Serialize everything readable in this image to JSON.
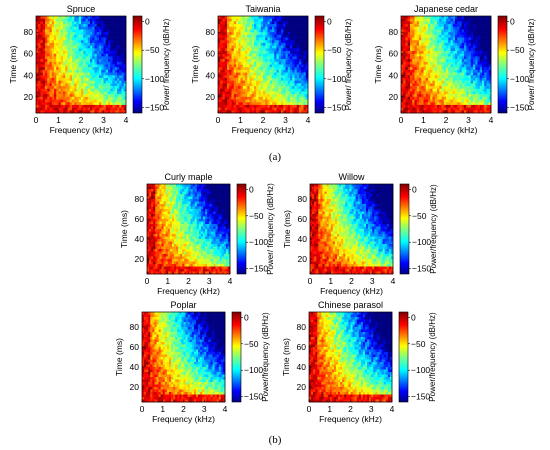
{
  "figure": {
    "sublabel_a": "(a)",
    "sublabel_b": "(b)"
  },
  "axis_text": {
    "xlabel": "Frequency (kHz)",
    "ylabel": "Time (ms)",
    "cbar_label_a": "Power/ frequency (dB/Hz)",
    "cbar_label_b": "Power/frequency (dB/Hz)"
  },
  "chart_data": [
    {
      "type": "heatmap",
      "group": "a",
      "title": "Spruce",
      "xlabel": "Frequency (kHz)",
      "ylabel": "Time (ms)",
      "xlim": [
        0,
        4
      ],
      "ylim": [
        5,
        95
      ],
      "xticks": [
        0,
        1,
        2,
        3,
        4
      ],
      "yticks": [
        20,
        40,
        60,
        80
      ],
      "colorbar": {
        "label": "Power/ frequency (dB/Hz)",
        "range": [
          -160,
          10
        ],
        "ticks": [
          0,
          -50,
          -100,
          -150
        ]
      }
    },
    {
      "type": "heatmap",
      "group": "a",
      "title": "Taiwania",
      "xlabel": "Frequency (kHz)",
      "ylabel": "Time (ms)",
      "xlim": [
        0,
        4
      ],
      "ylim": [
        5,
        95
      ],
      "xticks": [
        0,
        1,
        2,
        3,
        4
      ],
      "yticks": [
        20,
        40,
        60,
        80
      ],
      "colorbar": {
        "label": "Power/ frequency (dB/Hz)",
        "range": [
          -160,
          10
        ],
        "ticks": [
          0,
          -50,
          -100,
          -150
        ]
      }
    },
    {
      "type": "heatmap",
      "group": "a",
      "title": "Japanese cedar",
      "xlabel": "Frequency (kHz)",
      "ylabel": "Time (ms)",
      "xlim": [
        0,
        4
      ],
      "ylim": [
        5,
        95
      ],
      "xticks": [
        0,
        1,
        2,
        3,
        4
      ],
      "yticks": [
        20,
        40,
        60,
        80
      ],
      "colorbar": {
        "label": "Power/ frequency (dB/Hz)",
        "range": [
          -160,
          10
        ],
        "ticks": [
          0,
          -50,
          -100,
          -150
        ]
      }
    },
    {
      "type": "heatmap",
      "group": "b",
      "title": "Curly maple",
      "xlabel": "Frequency (kHz)",
      "ylabel": "Time (ms)",
      "xlim": [
        0,
        4
      ],
      "ylim": [
        5,
        95
      ],
      "xticks": [
        0,
        1,
        2,
        3,
        4
      ],
      "yticks": [
        20,
        40,
        60,
        80
      ],
      "colorbar": {
        "label": "Power/ frequency (dB/Hz)",
        "range": [
          -160,
          10
        ],
        "ticks": [
          0,
          -50,
          -100,
          -150
        ]
      }
    },
    {
      "type": "heatmap",
      "group": "b",
      "title": "Willow",
      "xlabel": "Frequency (kHz)",
      "ylabel": "Time (ms)",
      "xlim": [
        0,
        4
      ],
      "ylim": [
        5,
        95
      ],
      "xticks": [
        0,
        1,
        2,
        3,
        4
      ],
      "yticks": [
        20,
        40,
        60,
        80
      ],
      "colorbar": {
        "label": "Power/frequency (dB/Hz)",
        "range": [
          -160,
          10
        ],
        "ticks": [
          0,
          -50,
          -100,
          -150
        ]
      }
    },
    {
      "type": "heatmap",
      "group": "b",
      "title": "Poplar",
      "xlabel": "Frequency (kHz)",
      "ylabel": "Time (ms)",
      "xlim": [
        0,
        4
      ],
      "ylim": [
        5,
        95
      ],
      "xticks": [
        0,
        1,
        2,
        3,
        4
      ],
      "yticks": [
        20,
        40,
        60,
        80
      ],
      "colorbar": {
        "label": "Power/frequency (dB/Hz)",
        "range": [
          -160,
          10
        ],
        "ticks": [
          0,
          -50,
          -100,
          -150
        ]
      }
    },
    {
      "type": "heatmap",
      "group": "b",
      "title": "Chinese parasol",
      "xlabel": "Frequency (kHz)",
      "ylabel": "Time (ms)",
      "xlim": [
        0,
        4
      ],
      "ylim": [
        5,
        95
      ],
      "xticks": [
        0,
        1,
        2,
        3,
        4
      ],
      "yticks": [
        20,
        40,
        60,
        80
      ],
      "colorbar": {
        "label": "Power/frequency (dB/Hz)",
        "range": [
          -160,
          10
        ],
        "ticks": [
          0,
          -50,
          -100,
          -150
        ]
      }
    }
  ]
}
